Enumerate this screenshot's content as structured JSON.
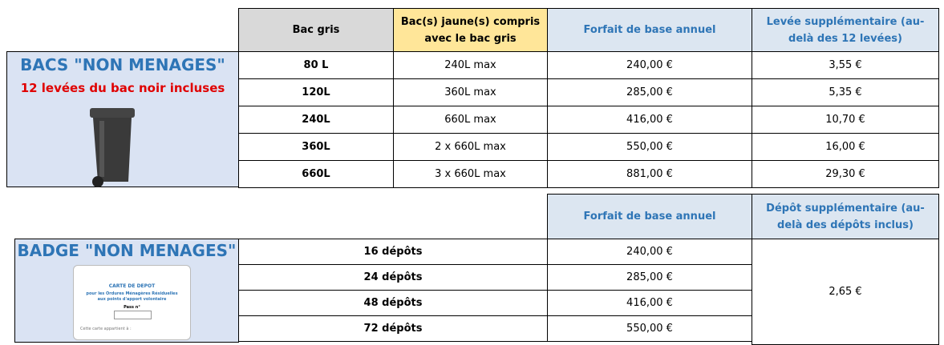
{
  "bacs": {
    "title": "BACS \"NON MENAGES\"",
    "subtitle": "12 levées du bac noir incluses",
    "header": [
      "Bac gris",
      "Bac(s) jaune(s) compris avec le bac gris",
      "Forfait de base annuel",
      "Levée supplémentaire (au-delà des 12 levées)"
    ],
    "rows": [
      [
        "80 L",
        "240L max",
        "240,00 €",
        "3,55 €"
      ],
      [
        "120L",
        "360L max",
        "285,00 €",
        "5,35 €"
      ],
      [
        "240L",
        "660L max",
        "416,00 €",
        "10,70 €"
      ],
      [
        "360L",
        "2 x 660L max",
        "550,00 €",
        "16,00 €"
      ],
      [
        "660L",
        "3 x 660L max",
        "881,00 €",
        "29,30 €"
      ]
    ]
  },
  "badge": {
    "title": "BADGE \"NON MENAGES\"",
    "card": {
      "title": "CARTE DE DEPOT",
      "line1": "pour les Ordures Ménagères Résiduelles",
      "line2": "aux points d'apport volontaire",
      "pass": "Pass n°",
      "owner": "Cette carte appartient à :"
    },
    "header": [
      "Forfait de base annuel",
      "Dépôt supplémentaire (au-delà des dépôts inclus)"
    ],
    "rows": [
      [
        "16 dépôts",
        "240,00 €"
      ],
      [
        "24 dépôts",
        "285,00 €"
      ],
      [
        "48 dépôts",
        "416,00 €"
      ],
      [
        "72 dépôts",
        "550,00 €"
      ]
    ],
    "extra": "2,65 €"
  }
}
